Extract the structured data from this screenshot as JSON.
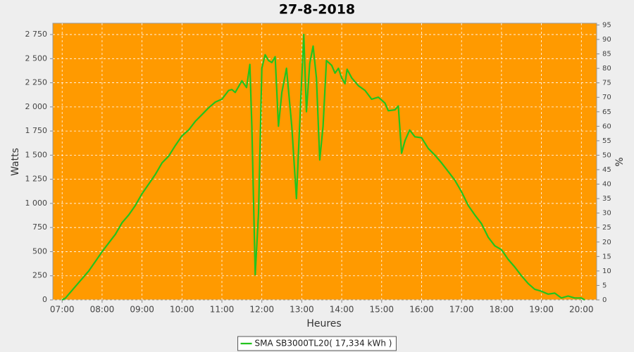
{
  "chart_data": {
    "type": "line",
    "title": "27-8-2018",
    "x_label": "Heures",
    "y_label": "Watts",
    "y2_label": "%",
    "x": [
      "07:00",
      "07:05",
      "07:10",
      "07:20",
      "07:30",
      "07:40",
      "07:50",
      "08:00",
      "08:10",
      "08:20",
      "08:30",
      "08:40",
      "08:50",
      "09:00",
      "09:10",
      "09:20",
      "09:30",
      "09:40",
      "09:50",
      "10:00",
      "10:10",
      "10:20",
      "10:30",
      "10:40",
      "10:50",
      "11:00",
      "11:10",
      "11:15",
      "11:20",
      "11:30",
      "11:37",
      "11:42",
      "11:45",
      "11:50",
      "11:55",
      "12:00",
      "12:05",
      "12:10",
      "12:15",
      "12:20",
      "12:25",
      "12:30",
      "12:37",
      "12:45",
      "12:52",
      "12:58",
      "13:03",
      "13:07",
      "13:12",
      "13:17",
      "13:22",
      "13:27",
      "13:32",
      "13:37",
      "13:45",
      "13:50",
      "13:55",
      "14:00",
      "14:05",
      "14:08",
      "14:15",
      "14:25",
      "14:35",
      "14:45",
      "14:55",
      "15:05",
      "15:10",
      "15:20",
      "15:25",
      "15:30",
      "15:35",
      "15:42",
      "15:50",
      "16:00",
      "16:10",
      "16:20",
      "16:30",
      "16:40",
      "16:50",
      "17:00",
      "17:10",
      "17:20",
      "17:30",
      "17:40",
      "17:50",
      "18:00",
      "18:10",
      "18:20",
      "18:30",
      "18:40",
      "18:50",
      "19:00",
      "19:10",
      "19:20",
      "19:30",
      "19:40",
      "19:50",
      "20:00",
      "20:05"
    ],
    "series": [
      {
        "name": "SMA SB3000TL20( 17,334 kWh )",
        "color": "#22c41e",
        "values": [
          0,
          20,
          60,
          140,
          220,
          300,
          400,
          500,
          590,
          680,
          800,
          880,
          980,
          1100,
          1200,
          1300,
          1420,
          1490,
          1600,
          1700,
          1760,
          1850,
          1920,
          1990,
          2050,
          2080,
          2170,
          2180,
          2150,
          2270,
          2200,
          2440,
          1800,
          260,
          900,
          2400,
          2540,
          2480,
          2460,
          2520,
          1800,
          2150,
          2400,
          1800,
          1050,
          2000,
          2750,
          1950,
          2450,
          2630,
          2300,
          1450,
          1800,
          2480,
          2430,
          2350,
          2400,
          2300,
          2240,
          2390,
          2300,
          2220,
          2170,
          2080,
          2100,
          2040,
          1960,
          1970,
          2010,
          1520,
          1650,
          1760,
          1690,
          1680,
          1570,
          1500,
          1420,
          1330,
          1240,
          1120,
          980,
          880,
          790,
          650,
          560,
          520,
          420,
          340,
          250,
          170,
          110,
          90,
          60,
          70,
          20,
          40,
          20,
          20,
          0
        ]
      }
    ],
    "xlim": [
      "06:46",
      "20:23"
    ],
    "xticks": [
      "07:00",
      "08:00",
      "09:00",
      "10:00",
      "11:00",
      "12:00",
      "13:00",
      "14:00",
      "15:00",
      "16:00",
      "17:00",
      "18:00",
      "19:00",
      "20:00"
    ],
    "ylim": [
      0,
      2867
    ],
    "yticks": [
      0,
      250,
      500,
      750,
      {
        "value": 1000,
        "label": "1 000"
      },
      {
        "value": 1250,
        "label": "1 250"
      },
      {
        "value": 1500,
        "label": "1 500"
      },
      {
        "value": 1750,
        "label": "1 750"
      },
      {
        "value": 2000,
        "label": "2 000"
      },
      {
        "value": 2250,
        "label": "2 250"
      },
      {
        "value": 2500,
        "label": "2 500"
      },
      {
        "value": 2750,
        "label": "2 750"
      }
    ],
    "y2lim": [
      0,
      95.6
    ],
    "y2ticks": [
      0,
      5,
      10,
      15,
      20,
      25,
      30,
      35,
      40,
      45,
      50,
      55,
      60,
      65,
      70,
      75,
      80,
      85,
      90,
      95
    ],
    "grid": true,
    "plot_background": "#ff9a00",
    "legend": "bottom"
  }
}
